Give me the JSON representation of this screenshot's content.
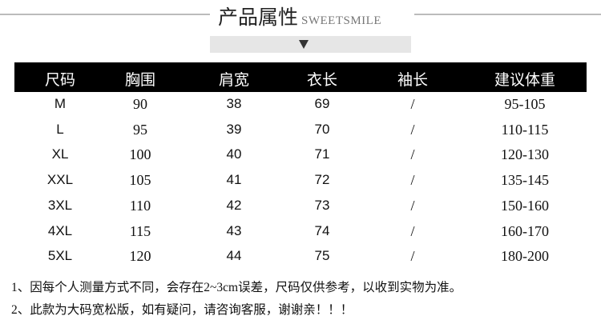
{
  "title": {
    "cn": "产品属性",
    "en": "SWEETSMILE"
  },
  "arrow_icon": "down-triangle",
  "table": {
    "headers": [
      "尺码",
      "胸围",
      "肩宽",
      "衣长",
      "袖长",
      "建议体重"
    ],
    "rows": [
      [
        "M",
        "90",
        "38",
        "69",
        "/",
        "95-105"
      ],
      [
        "L",
        "95",
        "39",
        "70",
        "/",
        "110-115"
      ],
      [
        "XL",
        "100",
        "40",
        "71",
        "/",
        "120-130"
      ],
      [
        "XXL",
        "105",
        "41",
        "72",
        "/",
        "135-145"
      ],
      [
        "3XL",
        "110",
        "42",
        "73",
        "/",
        "150-160"
      ],
      [
        "4XL",
        "115",
        "43",
        "74",
        "/",
        "160-170"
      ],
      [
        "5XL",
        "120",
        "44",
        "75",
        "/",
        "180-200"
      ]
    ]
  },
  "notes": [
    "1、因每个人测量方式不同，会存在2~3cm误差，尺码仅供参考，以收到实物为准。",
    "2、此款为大码宽松版，如有疑问，请咨询客服，谢谢亲！！！"
  ]
}
